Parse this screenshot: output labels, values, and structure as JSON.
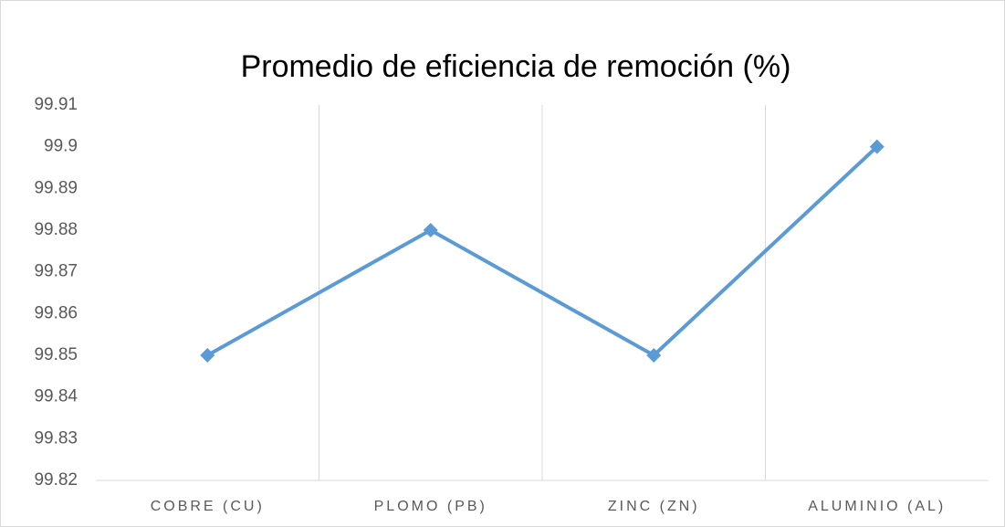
{
  "chart_data": {
    "type": "line",
    "title": "Promedio de eficiencia de remoción (%)",
    "categories": [
      "COBRE (CU)",
      "PLOMO (PB)",
      "ZINC (ZN)",
      "ALUMINIO (AL)"
    ],
    "values": [
      99.85,
      99.88,
      99.85,
      99.9
    ],
    "color": "#5b9bd5",
    "ylim": [
      99.82,
      99.91
    ],
    "yticks": [
      99.82,
      99.83,
      99.84,
      99.85,
      99.86,
      99.87,
      99.88,
      99.89,
      99.9,
      99.91
    ]
  }
}
